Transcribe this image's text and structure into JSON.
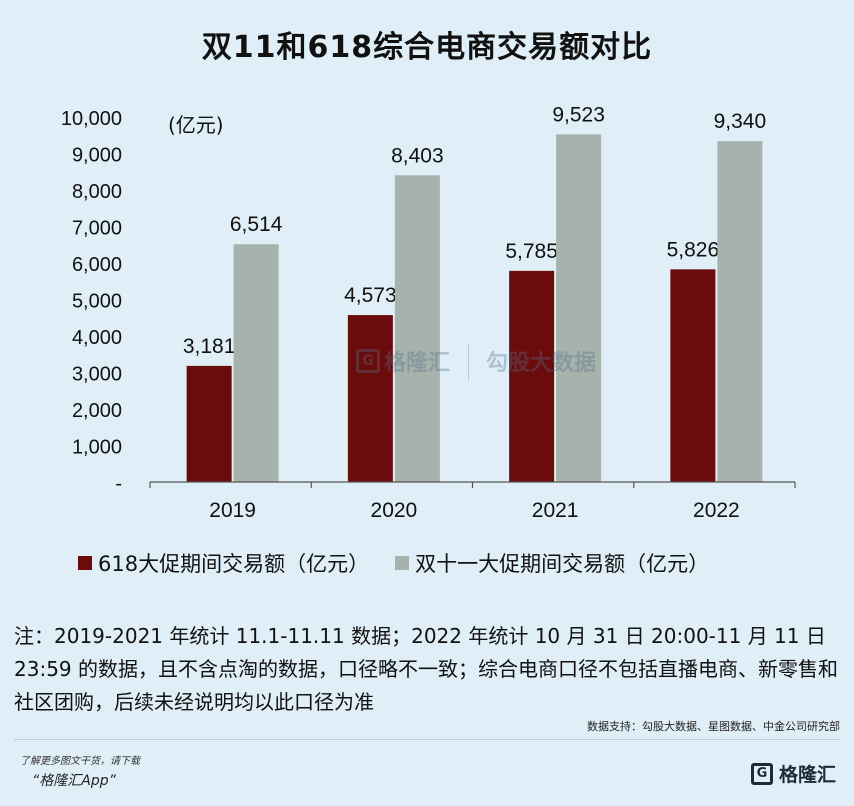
{
  "title": "双11和618综合电商交易额对比",
  "chart_data": {
    "type": "bar",
    "categories": [
      "2019",
      "2020",
      "2021",
      "2022"
    ],
    "series": [
      {
        "name": "618大促期间交易额（亿元）",
        "color": "#6b0c0c",
        "values": [
          3181,
          4573,
          5785,
          5826
        ]
      },
      {
        "name": "双十一大促期间交易额（亿元）",
        "color": "#a6b2ab",
        "values": [
          6514,
          8403,
          9523,
          9340
        ]
      }
    ],
    "value_labels": [
      [
        "3,181",
        "4,573",
        "5,785",
        "5,826"
      ],
      [
        "6,514",
        "8,403",
        "9,523",
        "9,340"
      ]
    ],
    "unit_label": "(亿元)",
    "ylim": [
      0,
      10000
    ],
    "y_ticks": [
      {
        "value": 0,
        "label": "-"
      },
      {
        "value": 1000,
        "label": "1,000"
      },
      {
        "value": 2000,
        "label": "2,000"
      },
      {
        "value": 3000,
        "label": "3,000"
      },
      {
        "value": 4000,
        "label": "4,000"
      },
      {
        "value": 5000,
        "label": "5,000"
      },
      {
        "value": 6000,
        "label": "6,000"
      },
      {
        "value": 7000,
        "label": "7,000"
      },
      {
        "value": 8000,
        "label": "8,000"
      },
      {
        "value": 9000,
        "label": "9,000"
      },
      {
        "value": 10000,
        "label": "10,000"
      }
    ],
    "legend_position": "bottom"
  },
  "watermark": {
    "left": "格隆汇",
    "right": "勾股大数据"
  },
  "note": "注：2019-2021 年统计 11.1-11.11 数据；2022 年统计 10 月 31 日 20:00-11 月 11 日 23:59 的数据，且不含点淘的数据，口径略不一致；综合电商口径不包括直播电商、新零售和社区团购，后续未经说明均以此口径为准",
  "source": "数据支持：勾股大数据、星图数据、中金公司研究部",
  "footer": {
    "hint": "了解更多图文干货，请下载",
    "app": "“格隆汇App”",
    "brand": "格隆汇",
    "brand_icon": "G"
  }
}
